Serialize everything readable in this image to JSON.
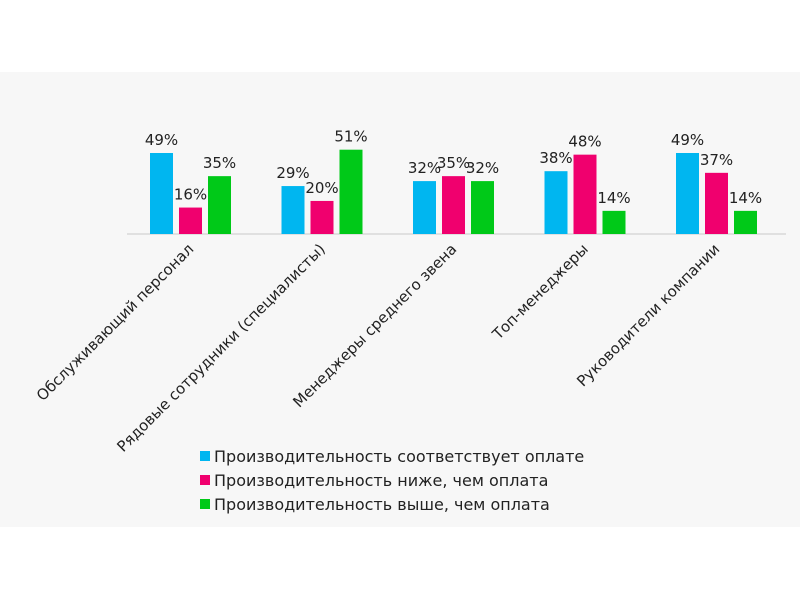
{
  "chart_data": {
    "type": "bar",
    "categories": [
      "Обслуживающий персонал",
      "Рядовые сотрудники (специалисты)",
      "Менеджеры среднего звена",
      "Топ-менеджеры",
      "Руководители компании"
    ],
    "series": [
      {
        "name": "Производительность соответствует оплате",
        "values": [
          49,
          29,
          32,
          38,
          49
        ],
        "labels": [
          "49%",
          "29%",
          "32%",
          "38%",
          "49%"
        ],
        "color": "#00b6f0"
      },
      {
        "name": "Производительность ниже, чем оплата",
        "values": [
          16,
          20,
          35,
          48,
          37
        ],
        "labels": [
          "16%",
          "20%",
          "35%",
          "48%",
          "37%"
        ],
        "color": "#f0006e"
      },
      {
        "name": "Производительность выше, чем оплата",
        "values": [
          35,
          51,
          32,
          14,
          14
        ],
        "labels": [
          "35%",
          "51%",
          "32%",
          "14%",
          "14%"
        ],
        "color": "#00c918"
      }
    ],
    "ylim": [
      0,
      55
    ],
    "legend_position": "bottom",
    "grid": false
  }
}
